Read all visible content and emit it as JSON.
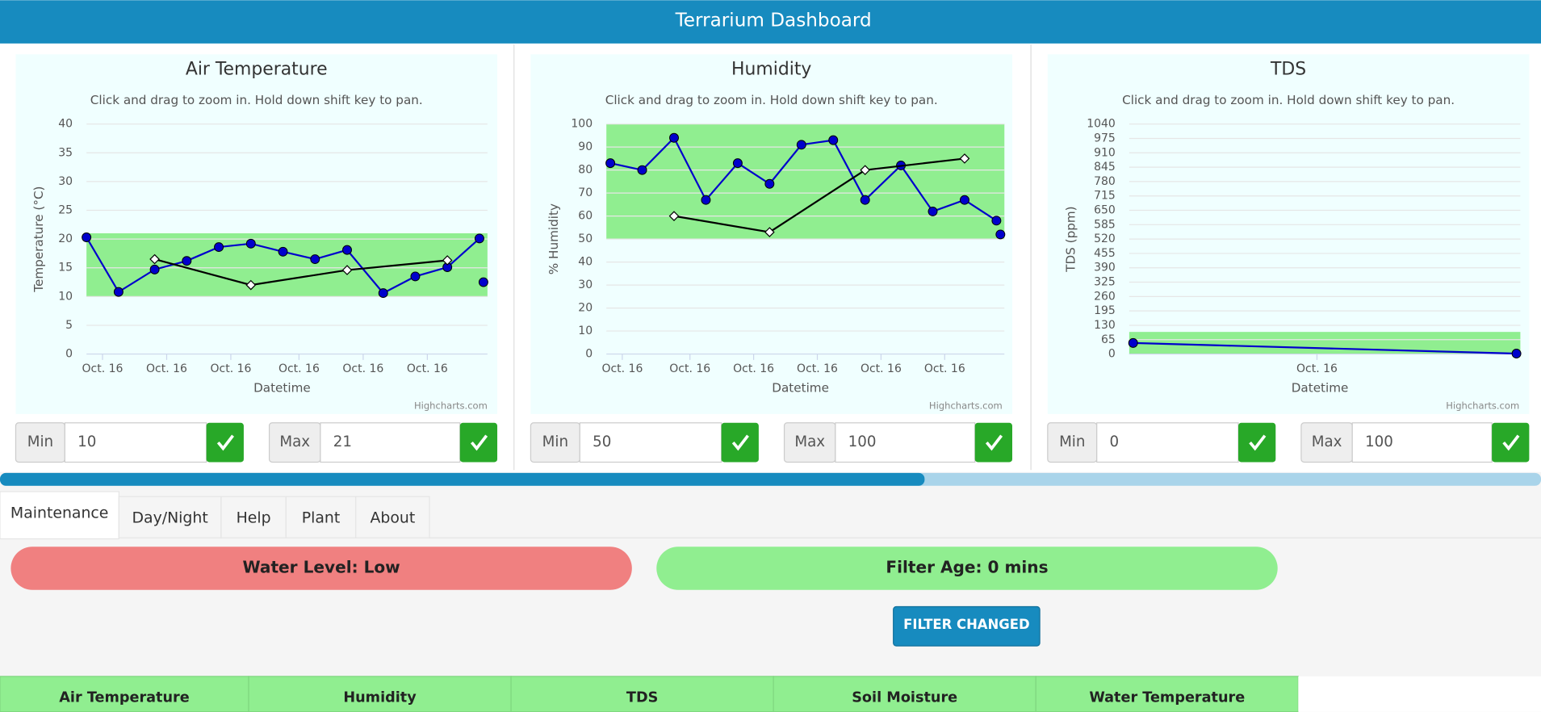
{
  "header": {
    "title": "Terrarium Dashboard"
  },
  "chart_data": [
    {
      "type": "line",
      "title": "Air Temperature",
      "subtitle": "Click and drag to zoom in. Hold down shift key to pan.",
      "y_label": "Temperature (°C)",
      "x_label": "Datetime",
      "credits": "Highcharts.com",
      "ylim": [
        0,
        40
      ],
      "yticks": [
        0,
        5,
        10,
        15,
        20,
        25,
        30,
        35,
        40
      ],
      "xlim": [
        0,
        100
      ],
      "xticks": [
        {
          "value": 4,
          "label": "Oct. 16"
        },
        {
          "value": 20,
          "label": "Oct. 16"
        },
        {
          "value": 36,
          "label": "Oct. 16"
        },
        {
          "value": 53,
          "label": "Oct. 16"
        },
        {
          "value": 69,
          "label": "Oct. 16"
        },
        {
          "value": 85,
          "label": "Oct. 16"
        }
      ],
      "band_color": "#90ee90",
      "series": [
        {
          "color": "#0000cc",
          "marker": "circle",
          "x": [
            0,
            8,
            17,
            25,
            33,
            41,
            49,
            57,
            65,
            74,
            82,
            90,
            98,
            99
          ],
          "values": [
            20.3,
            10.8,
            14.7,
            16.2,
            18.6,
            19.2,
            17.8,
            16.5,
            18.1,
            10.6,
            13.5,
            15.1,
            20.1,
            null
          ]
        },
        {
          "color": "#0000cc",
          "marker": "circle",
          "x": [
            99
          ],
          "values": [
            12.5
          ]
        },
        {
          "color": "#000000",
          "marker": "diamond",
          "x": [
            17,
            41,
            65,
            90
          ],
          "values": [
            16.5,
            12,
            14.6,
            16.3
          ]
        }
      ],
      "min": {
        "label": "Min",
        "value": 10
      },
      "max": {
        "label": "Max",
        "value": 21
      }
    },
    {
      "type": "line",
      "title": "Humidity",
      "subtitle": "Click and drag to zoom in. Hold down shift key to pan.",
      "y_label": "% Humidity",
      "x_label": "Datetime",
      "credits": "Highcharts.com",
      "ylim": [
        0,
        100
      ],
      "yticks": [
        0,
        10,
        20,
        30,
        40,
        50,
        60,
        70,
        80,
        90,
        100
      ],
      "xlim": [
        0,
        100
      ],
      "xticks": [
        {
          "value": 4,
          "label": "Oct. 16"
        },
        {
          "value": 21,
          "label": "Oct. 16"
        },
        {
          "value": 37,
          "label": "Oct. 16"
        },
        {
          "value": 53,
          "label": "Oct. 16"
        },
        {
          "value": 69,
          "label": "Oct. 16"
        },
        {
          "value": 85,
          "label": "Oct. 16"
        }
      ],
      "band_color": "#90ee90",
      "series": [
        {
          "color": "#0000cc",
          "marker": "circle",
          "x": [
            1,
            9,
            17,
            25,
            33,
            41,
            49,
            57,
            65,
            74,
            82,
            90,
            98
          ],
          "values": [
            83,
            80,
            94,
            67,
            83,
            74,
            91,
            93,
            67,
            82,
            62,
            67,
            58
          ]
        },
        {
          "color": "#0000cc",
          "marker": "circle",
          "x": [
            99
          ],
          "values": [
            52
          ]
        },
        {
          "color": "#000000",
          "marker": "diamond",
          "x": [
            17,
            41,
            65,
            90
          ],
          "values": [
            60,
            53,
            80,
            85
          ]
        }
      ],
      "min": {
        "label": "Min",
        "value": 50
      },
      "max": {
        "label": "Max",
        "value": 100
      }
    },
    {
      "type": "line",
      "title": "TDS",
      "subtitle": "Click and drag to zoom in. Hold down shift key to pan.",
      "y_label": "TDS  (ppm)",
      "x_label": "Datetime",
      "credits": "Highcharts.com",
      "ylim": [
        0,
        1040
      ],
      "yticks": [
        0,
        65,
        130,
        195,
        260,
        325,
        390,
        455,
        520,
        585,
        650,
        715,
        780,
        845,
        910,
        975,
        1040
      ],
      "xlim": [
        0,
        100
      ],
      "xticks": [
        {
          "value": 48,
          "label": "Oct. 16"
        }
      ],
      "band_color": "#90ee90",
      "series": [
        {
          "color": "#0000cc",
          "marker": "circle",
          "x": [
            1,
            99
          ],
          "values": [
            50,
            2
          ]
        }
      ],
      "min": {
        "label": "Min",
        "value": 0
      },
      "max": {
        "label": "Max",
        "value": 100
      }
    }
  ],
  "progress": {
    "value": 60,
    "max": 100
  },
  "tabs": [
    "Maintenance",
    "Day/Night",
    "Help",
    "Plant",
    "About"
  ],
  "status": {
    "water": "Water Level: Low",
    "filter": "Filter Age: 0 mins",
    "button": "FILTER CHANGED"
  },
  "table_headers": [
    "Air Temperature",
    "Humidity",
    "TDS",
    "Soil Moisture",
    "Water Temperature"
  ]
}
